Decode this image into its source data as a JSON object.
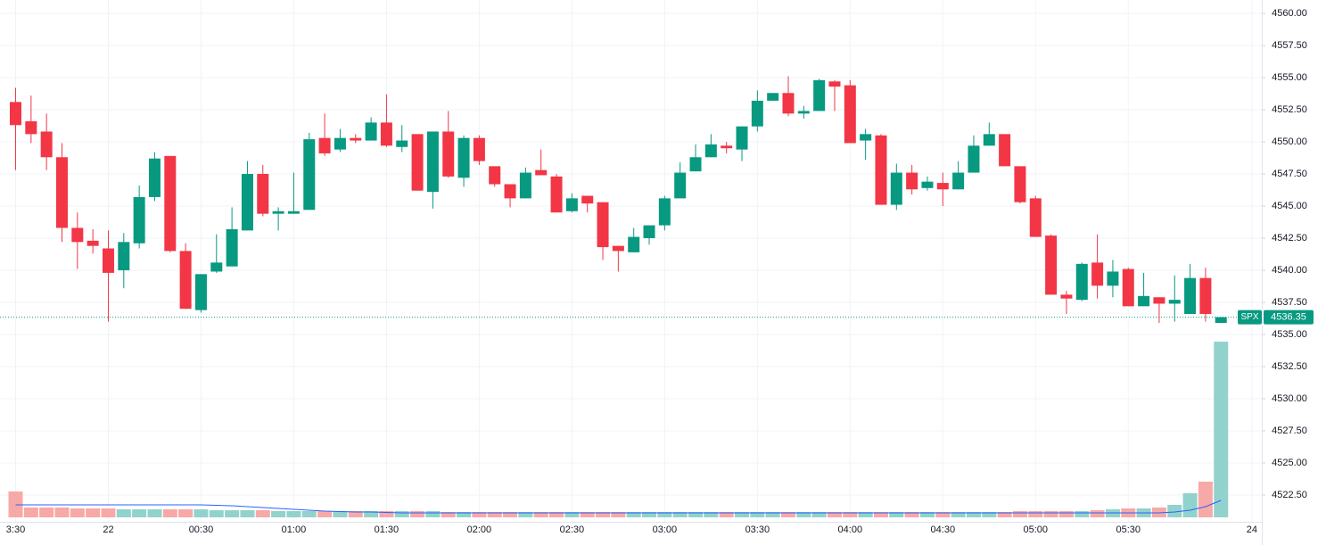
{
  "chart_data": {
    "type": "candlestick",
    "open": [
      4553.1,
      4551.6,
      4550.8,
      4548.8,
      4543.3,
      4542.3,
      4541.7,
      4540.0,
      4542.1,
      4545.7,
      4548.9,
      4541.5,
      4536.9,
      4539.9,
      4540.3,
      4543.1,
      4547.5,
      4544.4,
      4544.4,
      4544.7,
      4550.3,
      4549.4,
      4550.3,
      4550.1,
      4551.5,
      4549.6,
      4550.6,
      4546.1,
      4550.8,
      4547.2,
      4550.3,
      4548.1,
      4546.7,
      4545.6,
      4547.8,
      4547.3,
      4544.6,
      4545.8,
      4545.3,
      4541.9,
      4541.4,
      4542.5,
      4543.5,
      4545.6,
      4547.7,
      4548.8,
      4549.7,
      4549.4,
      4551.2,
      4553.2,
      4553.8,
      4552.2,
      4552.4,
      4554.7,
      4554.4,
      4550.1,
      4550.5,
      4545.1,
      4547.6,
      4546.4,
      4546.8,
      4546.3,
      4547.6,
      4549.7,
      4550.6,
      4548.1,
      4545.6,
      4542.7,
      4538.1,
      4537.7,
      4540.6,
      4538.8,
      4540.1,
      4537.2,
      4537.9,
      4537.4,
      4536.6,
      4539.4,
      4535.9
    ],
    "high": [
      4554.2,
      4553.6,
      4552.2,
      4549.9,
      4544.5,
      4543.2,
      4543.1,
      4542.9,
      4546.6,
      4549.2,
      4548.9,
      4542.1,
      4539.7,
      4542.8,
      4544.9,
      4548.5,
      4548.2,
      4544.9,
      4547.6,
      4550.7,
      4552.2,
      4551.0,
      4550.6,
      4551.9,
      4553.7,
      4551.3,
      4550.6,
      4550.8,
      4552.4,
      4550.5,
      4550.5,
      4548.1,
      4546.7,
      4548.0,
      4549.4,
      4547.5,
      4546.0,
      4545.8,
      4545.3,
      4541.9,
      4543.3,
      4543.5,
      4545.8,
      4548.4,
      4549.8,
      4550.6,
      4550.0,
      4551.2,
      4554.0,
      4553.8,
      4555.1,
      4552.8,
      4554.9,
      4554.8,
      4554.8,
      4551.0,
      4550.6,
      4548.3,
      4548.2,
      4547.3,
      4547.6,
      4548.5,
      4550.5,
      4551.5,
      4550.6,
      4548.1,
      4545.8,
      4542.8,
      4538.4,
      4540.6,
      4542.8,
      4540.8,
      4540.2,
      4539.8,
      4537.9,
      4539.6,
      4540.5,
      4540.2,
      4536.35
    ],
    "low": [
      4547.8,
      4549.9,
      4547.8,
      4542.2,
      4540.1,
      4541.3,
      4536.0,
      4538.6,
      4541.7,
      4545.4,
      4541.4,
      4537.0,
      4536.7,
      4539.8,
      4540.3,
      4543.1,
      4544.2,
      4543.1,
      4544.4,
      4544.7,
      4548.9,
      4549.2,
      4549.9,
      4550.1,
      4549.6,
      4549.2,
      4546.2,
      4544.8,
      4547.2,
      4546.5,
      4548.2,
      4546.5,
      4544.9,
      4545.6,
      4547.4,
      4544.5,
      4544.5,
      4544.5,
      4540.8,
      4539.9,
      4541.4,
      4542.0,
      4543.1,
      4545.6,
      4547.7,
      4548.8,
      4549.1,
      4548.5,
      4550.8,
      4553.2,
      4552.0,
      4551.8,
      4552.4,
      4552.4,
      4549.9,
      4548.6,
      4545.1,
      4544.7,
      4545.9,
      4546.2,
      4545.0,
      4546.3,
      4547.6,
      4549.7,
      4548.1,
      4545.2,
      4542.6,
      4538.1,
      4536.6,
      4537.6,
      4537.8,
      4537.9,
      4537.2,
      4537.2,
      4535.9,
      4536.0,
      4536.6,
      4536.0,
      4535.9
    ],
    "close": [
      4551.3,
      4550.6,
      4548.8,
      4543.3,
      4542.2,
      4541.9,
      4539.8,
      4542.2,
      4545.7,
      4548.7,
      4541.5,
      4537.0,
      4539.7,
      4540.6,
      4543.2,
      4547.5,
      4544.4,
      4544.6,
      4544.6,
      4550.2,
      4549.1,
      4550.3,
      4550.1,
      4551.5,
      4549.7,
      4550.1,
      4546.2,
      4550.8,
      4547.3,
      4550.3,
      4548.5,
      4546.7,
      4545.6,
      4547.6,
      4547.4,
      4544.5,
      4545.6,
      4545.2,
      4541.8,
      4541.5,
      4542.6,
      4543.5,
      4545.6,
      4547.6,
      4548.8,
      4549.8,
      4549.5,
      4551.2,
      4553.2,
      4553.8,
      4552.2,
      4552.4,
      4554.8,
      4554.3,
      4549.9,
      4550.6,
      4545.1,
      4547.6,
      4546.3,
      4546.9,
      4546.3,
      4547.6,
      4549.7,
      4550.6,
      4548.1,
      4545.3,
      4542.6,
      4538.1,
      4537.8,
      4540.5,
      4538.8,
      4539.9,
      4537.2,
      4538.0,
      4537.4,
      4537.7,
      4539.4,
      4536.6,
      4536.35
    ],
    "volume": [
      29,
      11,
      11,
      11,
      10,
      10,
      10,
      9,
      9,
      9,
      9,
      9,
      9,
      8,
      8,
      8,
      8,
      7,
      7,
      7,
      7,
      7,
      7,
      7,
      7,
      7,
      7,
      7,
      6,
      6,
      6,
      6,
      6,
      6,
      6,
      6,
      6,
      6,
      6,
      6,
      6,
      6,
      6,
      6,
      6,
      6,
      6,
      6,
      6,
      6,
      6,
      6,
      6,
      6,
      6,
      6,
      6,
      6,
      6,
      6,
      6,
      6,
      6,
      6,
      6,
      7,
      7,
      7,
      7,
      7,
      8,
      9,
      10,
      10,
      11,
      14,
      27,
      40,
      197
    ],
    "volume_ma": [
      14,
      14,
      14,
      14,
      14,
      14,
      14,
      14,
      14,
      14,
      14,
      14,
      14,
      13.5,
      13,
      12,
      11,
      10,
      9,
      8,
      7,
      6.5,
      6,
      6,
      5.5,
      5,
      5,
      5,
      5,
      5,
      5,
      5,
      5,
      5,
      5,
      5,
      5,
      5,
      5,
      5,
      5,
      5,
      5,
      5,
      5,
      5,
      5,
      5,
      5,
      5,
      5,
      5,
      5,
      5,
      5,
      5,
      5,
      5,
      5,
      5,
      5,
      5,
      5,
      5,
      5,
      5,
      5,
      5,
      5,
      5,
      5,
      5,
      5,
      5,
      5,
      6,
      8,
      12,
      19
    ],
    "up_color": "#089981",
    "down_color": "#f23645",
    "up_volume_color": "#92d2cc",
    "down_volume_color": "#f7a9a7",
    "ma_color": "#2962ff",
    "symbol": "SPX",
    "last_price": 4536.35,
    "ylim": [
      4520.42,
      4561.04
    ],
    "yticks": [
      {
        "value": 4522.5,
        "label": "4522.50"
      },
      {
        "value": 4525,
        "label": "4525.00"
      },
      {
        "value": 4527.5,
        "label": "4527.50"
      },
      {
        "value": 4530,
        "label": "4530.00"
      },
      {
        "value": 4532.5,
        "label": "4532.50"
      },
      {
        "value": 4535,
        "label": "4535.00"
      },
      {
        "value": 4537.5,
        "label": "4537.50"
      },
      {
        "value": 4540,
        "label": "4540.00"
      },
      {
        "value": 4542.5,
        "label": "4542.50"
      },
      {
        "value": 4545,
        "label": "4545.00"
      },
      {
        "value": 4547.5,
        "label": "4547.50"
      },
      {
        "value": 4550,
        "label": "4550.00"
      },
      {
        "value": 4552.5,
        "label": "4552.50"
      },
      {
        "value": 4555,
        "label": "4555.00"
      },
      {
        "value": 4557.5,
        "label": "4557.50"
      },
      {
        "value": 4560,
        "label": "4560.00"
      }
    ],
    "xticks": [
      {
        "value": 0,
        "label": "3:30"
      },
      {
        "value": 6,
        "label": "22"
      },
      {
        "value": 12,
        "label": "00:30"
      },
      {
        "value": 18,
        "label": "01:00"
      },
      {
        "value": 24,
        "label": "01:30"
      },
      {
        "value": 30,
        "label": "02:00"
      },
      {
        "value": 36,
        "label": "02:30"
      },
      {
        "value": 42,
        "label": "03:00"
      },
      {
        "value": 48,
        "label": "03:30"
      },
      {
        "value": 54,
        "label": "04:00"
      },
      {
        "value": 60,
        "label": "04:30"
      },
      {
        "value": 66,
        "label": "05:00"
      },
      {
        "value": 72,
        "label": "05:30"
      },
      {
        "value": 80,
        "label": "24"
      }
    ],
    "grid": true
  }
}
